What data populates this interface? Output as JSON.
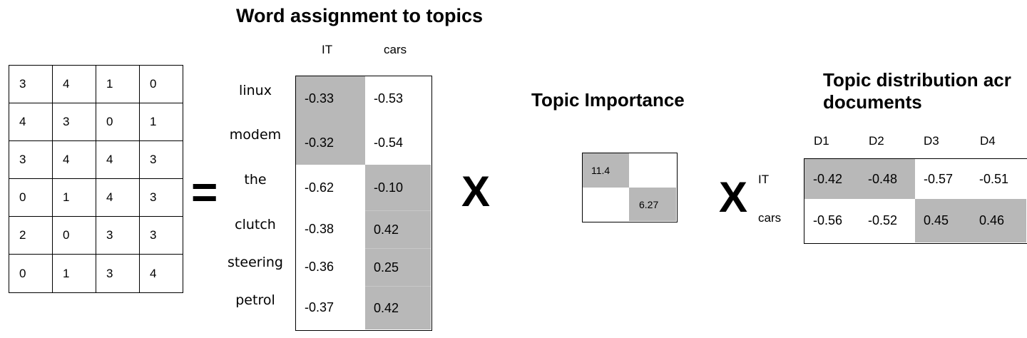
{
  "titles": {
    "word_assignment": "Word assignment to topics",
    "topic_importance": "Topic Importance",
    "topic_distribution_line1": "Topic distribution acr",
    "topic_distribution_line2": "documents"
  },
  "operators": {
    "equals": "=",
    "times1": "X",
    "times2": "X"
  },
  "term_document_matrix": [
    [
      "3",
      "4",
      "1",
      "0"
    ],
    [
      "4",
      "3",
      "0",
      "1"
    ],
    [
      "3",
      "4",
      "4",
      "3"
    ],
    [
      "0",
      "1",
      "4",
      "3"
    ],
    [
      "2",
      "0",
      "3",
      "3"
    ],
    [
      "0",
      "1",
      "3",
      "4"
    ]
  ],
  "word_topic": {
    "topics": [
      "IT",
      "cars"
    ],
    "rows": [
      {
        "word": "linux",
        "it": "-0.33",
        "cars": "-0.53"
      },
      {
        "word": "modem",
        "it": "-0.32",
        "cars": "-0.54"
      },
      {
        "word": "the",
        "it": "-0.62",
        "cars": "-0.10"
      },
      {
        "word": "clutch",
        "it": "-0.38",
        "cars": "0.42"
      },
      {
        "word": "steering",
        "it": "-0.36",
        "cars": "0.25"
      },
      {
        "word": "petrol",
        "it": "-0.37",
        "cars": "0.42"
      }
    ]
  },
  "topic_importance": {
    "it": "11.4",
    "cars": "6.27"
  },
  "topic_distribution": {
    "docs": [
      "D1",
      "D2",
      "D3",
      "D4"
    ],
    "rows": [
      {
        "topic": "IT",
        "values": [
          "-0.42",
          "-0.48",
          "-0.57",
          "-0.51"
        ]
      },
      {
        "topic": "cars",
        "values": [
          "-0.56",
          "-0.52",
          "0.45",
          "0.46"
        ]
      }
    ]
  },
  "colors": {
    "shade": "#b8b8b8",
    "border": "#000000"
  }
}
